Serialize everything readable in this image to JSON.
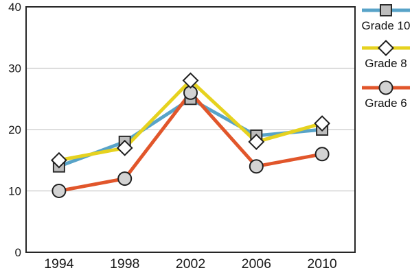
{
  "chart_data": {
    "type": "line",
    "title": "",
    "xlabel": "",
    "ylabel": "",
    "x_categories": [
      "1994",
      "1998",
      "2002",
      "2006",
      "2010"
    ],
    "ylim": [
      0,
      40
    ],
    "yticks": [
      0,
      10,
      20,
      30,
      40
    ],
    "grid": true,
    "legend_position": "right",
    "series": [
      {
        "name": "Grade 10",
        "marker": "square",
        "line_color": "#58A3C8",
        "marker_fill": "#BDBDBD",
        "marker_stroke": "#2b2b2b",
        "values": [
          14,
          18,
          25,
          19,
          20
        ]
      },
      {
        "name": "Grade 8",
        "marker": "diamond",
        "line_color": "#E6D21F",
        "marker_fill": "#FFFFFF",
        "marker_stroke": "#1f1f1f",
        "values": [
          15,
          17,
          28,
          18,
          21
        ]
      },
      {
        "name": "Grade 6",
        "marker": "circle",
        "line_color": "#E1562B",
        "marker_fill": "#D3D3D3",
        "marker_stroke": "#1f1f1f",
        "values": [
          10,
          12,
          26,
          14,
          16
        ]
      }
    ],
    "colors": {
      "grid_line": "#C9C9C9",
      "plot_border": "#262626",
      "tick_text": "#1a1a1a"
    }
  }
}
